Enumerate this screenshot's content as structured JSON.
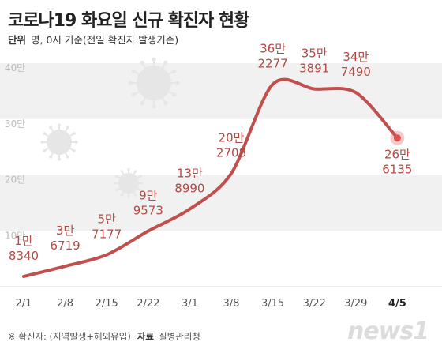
{
  "title": "코로나19 화요일 신규 확진자 현황",
  "unit": {
    "label": "단위",
    "text": "명, 0시 기준(전일 확진자 발생기준)"
  },
  "footnote": {
    "note": "※ 확진자: (지역발생+해외유입)",
    "source_label": "자료",
    "source": "질병관리청"
  },
  "logo": "news1",
  "colors": {
    "line": "#c0504d",
    "label": "#b24a45",
    "band": "#f1f1f1",
    "marker": "#d9534f"
  },
  "chart_data": {
    "type": "line",
    "x": [
      "2/1",
      "2/8",
      "2/15",
      "2/22",
      "3/1",
      "3/8",
      "3/15",
      "3/22",
      "3/29",
      "4/5"
    ],
    "values": [
      18340,
      36719,
      57177,
      99573,
      138990,
      202708,
      362277,
      353891,
      347490,
      266135
    ],
    "labels": [
      [
        "1만",
        "8340"
      ],
      [
        "3만",
        "6719"
      ],
      [
        "5만",
        "7177"
      ],
      [
        "9만",
        "9573"
      ],
      [
        "13만",
        "8990"
      ],
      [
        "20만",
        "2708"
      ],
      [
        "36만",
        "2277"
      ],
      [
        "35만",
        "3891"
      ],
      [
        "34만",
        "7490"
      ],
      [
        "26만",
        "6135"
      ]
    ],
    "yticks": [
      "10만",
      "20만",
      "30만",
      "40만"
    ],
    "ylim": [
      0,
      400000
    ],
    "grid": "alternating bands",
    "highlight_last": true
  }
}
